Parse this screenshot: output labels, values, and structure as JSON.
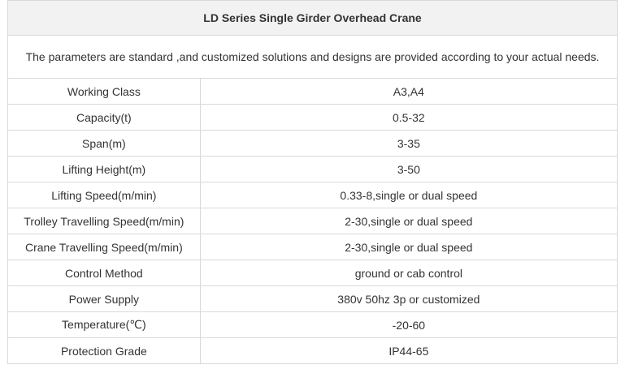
{
  "table": {
    "title": "LD Series Single Girder Overhead Crane",
    "note": "The parameters are standard ,and customized solutions and designs are provided according to your actual needs.",
    "rows": [
      {
        "name": "Working Class",
        "value": "A3,A4"
      },
      {
        "name": "Capacity(t)",
        "value": "0.5-32"
      },
      {
        "name": "Span(m)",
        "value": "3-35"
      },
      {
        "name": "Lifting Height(m)",
        "value": "3-50"
      },
      {
        "name": "Lifting Speed(m/min)",
        "value": "0.33-8,single or dual speed"
      },
      {
        "name": "Trolley Travelling Speed(m/min)",
        "value": "2-30,single or dual speed"
      },
      {
        "name": "Crane Travelling Speed(m/min)",
        "value": "2-30,single or dual speed"
      },
      {
        "name": "Control Method",
        "value": "ground or cab control"
      },
      {
        "name": "Power Supply",
        "value": "380v 50hz 3p or customized"
      },
      {
        "name": "Temperature(℃)",
        "value": "-20-60"
      },
      {
        "name": "Protection Grade",
        "value": "IP44-65"
      }
    ]
  }
}
